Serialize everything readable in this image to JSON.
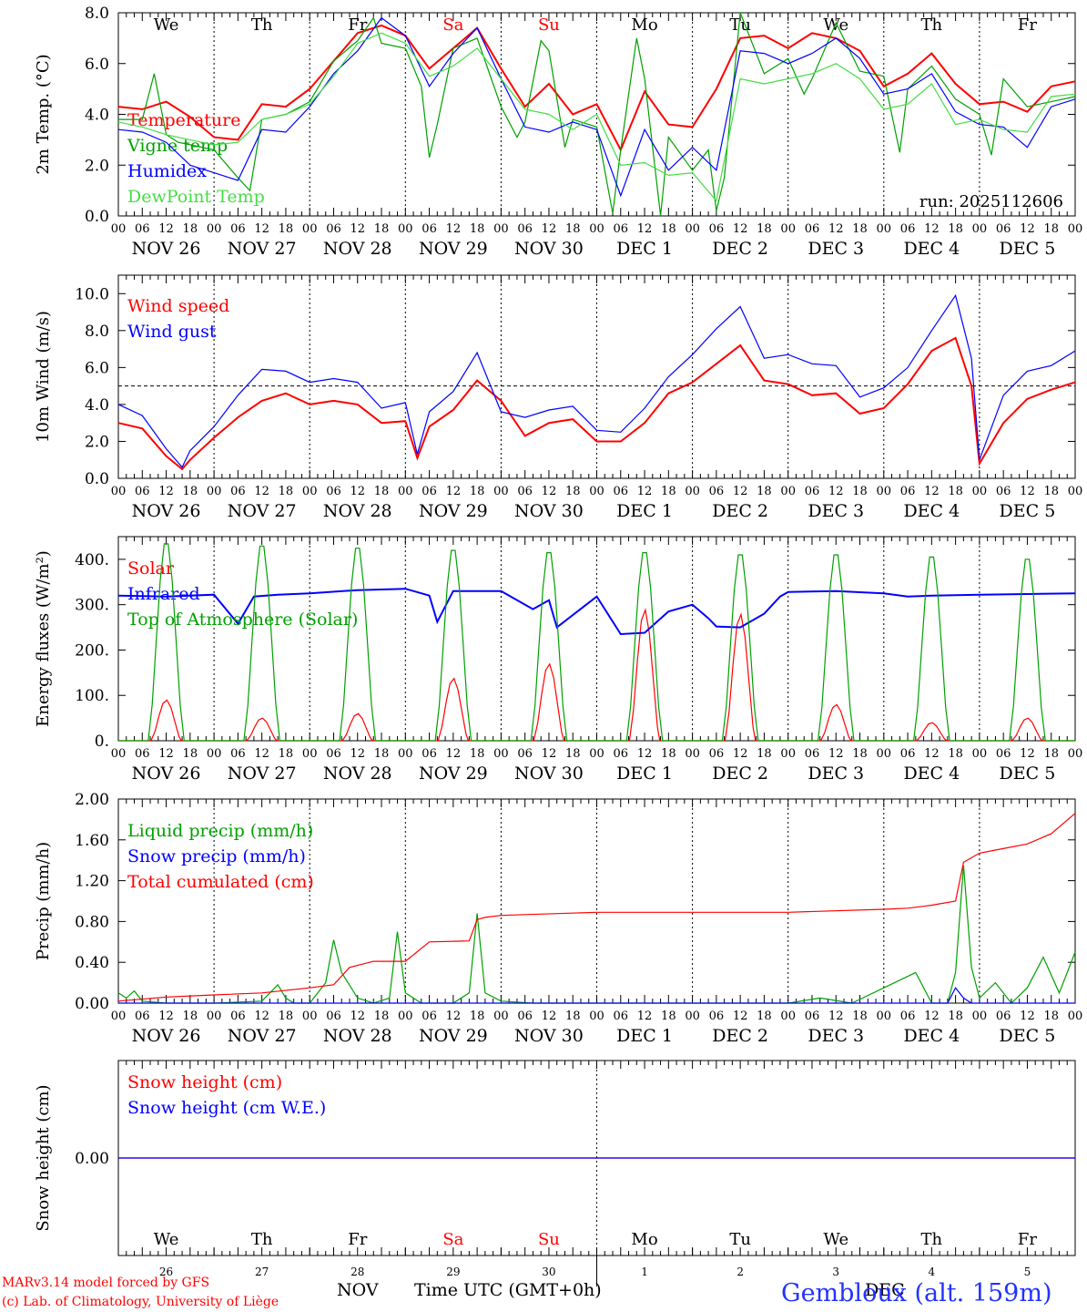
{
  "footer": {
    "model_line": "MARv3.14 model forced by GFS",
    "credit_line": "(c) Lab. of Climatology, University of Liège",
    "month_label": "NOV",
    "month_label_2": "DEC",
    "time_label": "Time UTC (GMT+0h)",
    "station": "Gembloux (alt. 159m)"
  },
  "colors": {
    "red": "#ff0000",
    "dark_green": "#00a000",
    "blue": "#0000ff",
    "light_green": "#44dd44",
    "weekend_red": "#ff0000",
    "axis": "#000000"
  },
  "x_axis": {
    "tick_labels": [
      "00",
      "06",
      "12",
      "18"
    ],
    "day_labels": [
      "NOV 26",
      "NOV 27",
      "NOV 28",
      "NOV 29",
      "NOV 30",
      "DEC  1",
      "DEC  2",
      "DEC  3",
      "DEC  4",
      "DEC  5"
    ],
    "weekdays": [
      "We",
      "Th",
      "Fr",
      "Sa",
      "Su",
      "Mo",
      "Tu",
      "We",
      "Th",
      "Fr"
    ],
    "weekend_flags": [
      false,
      false,
      false,
      true,
      true,
      false,
      false,
      false,
      false,
      false
    ],
    "bottom_day_numbers": [
      "26",
      "27",
      "28",
      "29",
      "30",
      "1",
      "2",
      "3",
      "4",
      "5"
    ]
  },
  "chart_data": [
    {
      "type": "line",
      "ylabel": "2m Temp. (°C)",
      "ylim": [
        0,
        8
      ],
      "y_ticks": [
        "0.0",
        "2.0",
        "4.0",
        "6.0",
        "8.0"
      ],
      "annotation": "run: 2025112606",
      "x_unit": "hours from NOV 26 00 UTC",
      "series": [
        {
          "name": "Temperature",
          "color": "red",
          "x": [
            0,
            6,
            12,
            18,
            24,
            30,
            36,
            42,
            48,
            54,
            60,
            66,
            72,
            78,
            84,
            90,
            96,
            102,
            108,
            114,
            120,
            126,
            132,
            138,
            144,
            150,
            156,
            162,
            168,
            174,
            180,
            186,
            192,
            198,
            204,
            210,
            216,
            222,
            228,
            234,
            240
          ],
          "y": [
            4.3,
            4.2,
            4.5,
            3.9,
            3.1,
            3.0,
            4.4,
            4.3,
            5.0,
            6.1,
            7.2,
            7.5,
            7.1,
            5.8,
            6.6,
            7.4,
            5.8,
            4.3,
            5.2,
            4.0,
            4.4,
            2.6,
            4.9,
            3.6,
            3.5,
            5.0,
            7.0,
            7.1,
            6.6,
            7.2,
            7.0,
            6.5,
            5.1,
            5.6,
            6.4,
            5.2,
            4.4,
            4.5,
            4.1,
            5.1,
            5.3
          ]
        },
        {
          "name": "Vigne temp",
          "color": "dark_green",
          "x": [
            0,
            6,
            9,
            12,
            15,
            18,
            24,
            30,
            33,
            36,
            42,
            48,
            54,
            60,
            64,
            66,
            72,
            76,
            78,
            80,
            84,
            90,
            96,
            100,
            102,
            106,
            108,
            112,
            114,
            120,
            124,
            126,
            130,
            132,
            136,
            138,
            144,
            148,
            150,
            152,
            156,
            162,
            168,
            172,
            174,
            180,
            186,
            192,
            196,
            198,
            204,
            210,
            216,
            219,
            222,
            228,
            234,
            240
          ],
          "y": [
            3.8,
            3.8,
            5.6,
            3.2,
            2.9,
            2.8,
            2.6,
            1.5,
            1.0,
            3.8,
            4.0,
            4.5,
            6.1,
            6.9,
            7.8,
            6.8,
            6.6,
            5.1,
            2.3,
            3.6,
            6.6,
            7.0,
            4.3,
            3.1,
            3.7,
            6.9,
            6.5,
            2.7,
            3.8,
            3.5,
            0.1,
            2.6,
            7.0,
            5.4,
            0.0,
            3.1,
            1.8,
            2.6,
            0.2,
            1.5,
            8.0,
            5.6,
            6.2,
            4.8,
            5.4,
            7.6,
            5.7,
            5.5,
            2.5,
            5.0,
            5.9,
            4.6,
            4.0,
            2.4,
            5.4,
            4.3,
            4.5,
            4.7
          ]
        },
        {
          "name": "Humidex",
          "color": "blue",
          "x": [
            0,
            6,
            12,
            18,
            24,
            30,
            36,
            42,
            48,
            54,
            60,
            66,
            72,
            78,
            84,
            90,
            96,
            102,
            108,
            114,
            120,
            126,
            132,
            138,
            144,
            150,
            156,
            162,
            168,
            174,
            180,
            186,
            192,
            198,
            204,
            210,
            216,
            222,
            228,
            234,
            240
          ],
          "y": [
            3.4,
            3.3,
            2.9,
            2.0,
            1.7,
            1.4,
            3.4,
            3.3,
            4.3,
            5.6,
            6.5,
            7.8,
            7.1,
            5.1,
            6.4,
            7.4,
            5.4,
            3.5,
            3.3,
            3.7,
            3.4,
            0.8,
            3.4,
            1.8,
            2.7,
            1.8,
            6.5,
            6.4,
            6.0,
            6.4,
            7.0,
            6.2,
            4.8,
            5.0,
            5.6,
            4.1,
            3.6,
            3.5,
            2.7,
            4.3,
            4.6
          ]
        },
        {
          "name": "DewPoint Temp",
          "color": "light_green",
          "x": [
            0,
            6,
            12,
            18,
            24,
            30,
            36,
            42,
            48,
            54,
            60,
            66,
            72,
            78,
            84,
            90,
            96,
            102,
            108,
            114,
            120,
            126,
            132,
            138,
            144,
            150,
            156,
            162,
            168,
            174,
            180,
            186,
            192,
            198,
            204,
            210,
            216,
            222,
            228,
            234,
            240
          ],
          "y": [
            3.7,
            3.5,
            3.2,
            3.0,
            2.8,
            2.9,
            3.8,
            4.0,
            4.4,
            5.5,
            6.8,
            7.2,
            6.8,
            5.5,
            5.9,
            6.6,
            5.4,
            4.2,
            4.0,
            3.4,
            4.0,
            2.0,
            2.1,
            1.6,
            1.7,
            0.6,
            5.4,
            5.2,
            5.4,
            5.6,
            6.0,
            5.4,
            4.2,
            4.4,
            5.2,
            3.6,
            3.8,
            3.4,
            3.3,
            4.7,
            4.8
          ]
        }
      ]
    },
    {
      "type": "line",
      "ylabel": "10m Wind (m/s)",
      "ylim": [
        0,
        11
      ],
      "y_ticks": [
        "0.0",
        "2.0",
        "4.0",
        "6.0",
        "8.0",
        "10.0"
      ],
      "reference_line": 5.0,
      "series": [
        {
          "name": "Wind speed",
          "color": "red",
          "x": [
            0,
            6,
            12,
            16,
            18,
            24,
            30,
            36,
            42,
            48,
            54,
            60,
            66,
            72,
            75,
            78,
            84,
            90,
            96,
            102,
            108,
            114,
            120,
            126,
            132,
            138,
            144,
            150,
            156,
            162,
            168,
            174,
            180,
            186,
            192,
            198,
            204,
            210,
            214,
            216,
            222,
            228,
            234,
            240
          ],
          "y": [
            3.0,
            2.7,
            1.2,
            0.5,
            1.0,
            2.2,
            3.3,
            4.2,
            4.6,
            4.0,
            4.2,
            4.0,
            3.0,
            3.1,
            1.1,
            2.8,
            3.7,
            5.3,
            4.2,
            2.3,
            3.0,
            3.2,
            2.0,
            2.0,
            3.0,
            4.6,
            5.2,
            6.2,
            7.2,
            5.3,
            5.1,
            4.5,
            4.6,
            3.5,
            3.8,
            5.1,
            6.9,
            7.6,
            5.0,
            0.8,
            3.0,
            4.3,
            4.8,
            5.2
          ]
        },
        {
          "name": "Wind gust",
          "color": "blue",
          "x": [
            0,
            6,
            12,
            16,
            18,
            24,
            30,
            36,
            42,
            48,
            54,
            60,
            66,
            72,
            75,
            78,
            84,
            90,
            96,
            102,
            108,
            114,
            120,
            126,
            132,
            138,
            144,
            150,
            156,
            162,
            168,
            174,
            180,
            186,
            192,
            198,
            204,
            210,
            214,
            216,
            222,
            228,
            234,
            240
          ],
          "y": [
            4.0,
            3.4,
            1.6,
            0.6,
            1.5,
            2.8,
            4.5,
            5.9,
            5.8,
            5.2,
            5.4,
            5.2,
            3.8,
            4.1,
            1.3,
            3.6,
            4.7,
            6.8,
            3.6,
            3.3,
            3.7,
            3.9,
            2.6,
            2.5,
            3.8,
            5.5,
            6.7,
            8.1,
            9.3,
            6.5,
            6.7,
            6.2,
            6.1,
            4.4,
            4.9,
            6.0,
            8.0,
            9.9,
            6.5,
            1.0,
            4.5,
            5.8,
            6.1,
            6.9
          ]
        }
      ]
    },
    {
      "type": "line",
      "ylabel": "Energy fluxes (W/m²)",
      "ylim": [
        0,
        450
      ],
      "y_ticks": [
        "0.",
        "100.",
        "200.",
        "300.",
        "400."
      ],
      "series": [
        {
          "name": "Solar",
          "color": "red",
          "day_peaks": [
            90,
            50,
            60,
            138,
            170,
            290,
            280,
            80,
            40,
            50
          ]
        },
        {
          "name": "Infrared",
          "color": "blue",
          "x": [
            0,
            12,
            24,
            30,
            34,
            40,
            48,
            60,
            72,
            78,
            80,
            84,
            96,
            104,
            108,
            110,
            120,
            126,
            132,
            138,
            144,
            148,
            150,
            156,
            162,
            166,
            168,
            180,
            192,
            198,
            204,
            216,
            240
          ],
          "y": [
            320,
            318,
            322,
            258,
            318,
            322,
            325,
            332,
            335,
            320,
            262,
            330,
            330,
            290,
            310,
            250,
            318,
            235,
            238,
            285,
            300,
            270,
            252,
            250,
            280,
            318,
            328,
            330,
            325,
            318,
            320,
            322,
            325
          ]
        },
        {
          "name": "Top of Atmosphere (Solar)",
          "color": "dark_green",
          "day_peaks": [
            445,
            440,
            435,
            430,
            425,
            425,
            420,
            420,
            415,
            410
          ]
        }
      ]
    },
    {
      "type": "line",
      "ylabel": "Precip (mm/h)",
      "ylim": [
        0,
        2.0
      ],
      "y_ticks": [
        "0.00",
        "0.40",
        "0.80",
        "1.20",
        "1.60",
        "2.00"
      ],
      "series": [
        {
          "name": "Liquid precip (mm/h)",
          "color": "dark_green",
          "x": [
            0,
            2,
            4,
            6,
            12,
            24,
            36,
            40,
            42,
            44,
            48,
            52,
            54,
            56,
            60,
            64,
            68,
            70,
            72,
            76,
            80,
            84,
            88,
            90,
            92,
            96,
            104,
            120,
            128,
            144,
            168,
            176,
            184,
            200,
            204,
            208,
            210,
            212,
            214,
            216,
            220,
            224,
            228,
            232,
            236,
            240
          ],
          "y": [
            0.1,
            0.05,
            0.12,
            0.02,
            0.0,
            0.0,
            0.02,
            0.18,
            0.05,
            0.0,
            0.0,
            0.2,
            0.62,
            0.3,
            0.05,
            0.0,
            0.05,
            0.7,
            0.1,
            0.0,
            0.0,
            0.0,
            0.1,
            0.88,
            0.1,
            0.02,
            0.0,
            0.0,
            0.0,
            0.0,
            0.0,
            0.05,
            0.0,
            0.3,
            0.0,
            0.0,
            0.3,
            1.35,
            0.35,
            0.05,
            0.2,
            0.0,
            0.15,
            0.45,
            0.1,
            0.5
          ]
        },
        {
          "name": "Snow precip (mm/h)",
          "color": "blue",
          "x": [
            0,
            208,
            210,
            212,
            214,
            240
          ],
          "y": [
            0.0,
            0.0,
            0.15,
            0.05,
            0.0,
            0.0
          ]
        },
        {
          "name": "Total cumulated (cm)",
          "color": "red",
          "x": [
            0,
            12,
            24,
            36,
            48,
            54,
            58,
            64,
            72,
            78,
            88,
            90,
            92,
            96,
            120,
            144,
            168,
            192,
            198,
            204,
            210,
            212,
            216,
            220,
            228,
            234,
            240
          ],
          "y": [
            0.02,
            0.06,
            0.08,
            0.1,
            0.15,
            0.18,
            0.35,
            0.41,
            0.41,
            0.6,
            0.61,
            0.82,
            0.84,
            0.86,
            0.89,
            0.89,
            0.89,
            0.92,
            0.93,
            0.96,
            1.0,
            1.38,
            1.47,
            1.5,
            1.56,
            1.66,
            1.86
          ]
        }
      ]
    },
    {
      "type": "line",
      "ylabel": "Snow height (cm)",
      "y_ticks": [
        "0.00"
      ],
      "series": [
        {
          "name": "Snow height (cm)",
          "color": "red",
          "x": [
            0,
            240
          ],
          "y": [
            0.0,
            0.0
          ]
        },
        {
          "name": "Snow height (cm W.E.)",
          "color": "blue",
          "x": [
            0,
            240
          ],
          "y": [
            0.0,
            0.0
          ]
        }
      ]
    }
  ]
}
